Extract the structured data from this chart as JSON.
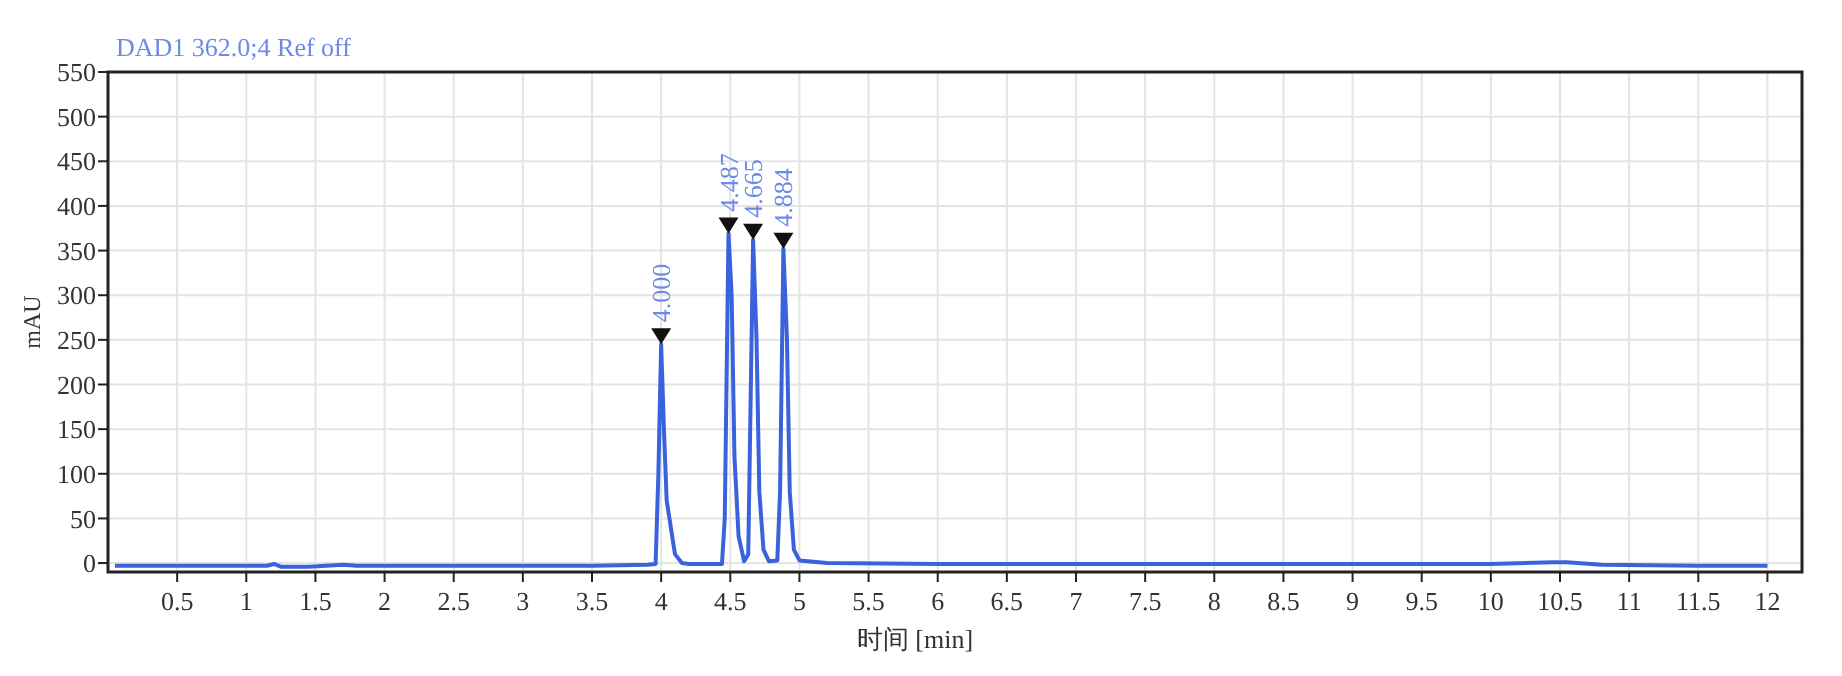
{
  "chart_data": {
    "type": "line",
    "title": "DAD1 362.0;4 Ref off",
    "xlabel": "时间 [min]",
    "ylabel": "mAU",
    "xlim": [
      0,
      12.25
    ],
    "ylim": [
      -10,
      550
    ],
    "xticks": [
      0.5,
      1,
      1.5,
      2,
      2.5,
      3,
      3.5,
      4,
      4.5,
      5,
      5.5,
      6,
      6.5,
      7,
      7.5,
      8,
      8.5,
      9,
      9.5,
      10,
      10.5,
      11,
      11.5,
      12
    ],
    "yticks": [
      0,
      50,
      100,
      150,
      200,
      250,
      300,
      350,
      400,
      450,
      500,
      550
    ],
    "grid": true,
    "marker": "none",
    "line_style": "solid",
    "series": [
      {
        "color": "#3a62dc",
        "x": [
          0.05,
          1.15,
          1.2,
          1.25,
          1.45,
          1.7,
          1.8,
          3.5,
          3.9,
          3.96,
          3.98,
          4.0,
          4.02,
          4.04,
          4.07,
          4.1,
          4.15,
          4.2,
          4.44,
          4.46,
          4.487,
          4.51,
          4.53,
          4.56,
          4.6,
          4.63,
          4.665,
          4.69,
          4.71,
          4.74,
          4.78,
          4.84,
          4.86,
          4.884,
          4.91,
          4.93,
          4.96,
          5.0,
          5.2,
          6,
          10,
          10.45,
          10.55,
          10.8,
          11.5,
          12
        ],
        "values": [
          -3,
          -3,
          -1,
          -4,
          -4,
          -2,
          -3,
          -3,
          -2,
          -1,
          100,
          245,
          150,
          70,
          40,
          10,
          0,
          -1,
          -1,
          50,
          369,
          300,
          120,
          30,
          2,
          10,
          362,
          250,
          80,
          15,
          2,
          3,
          80,
          352,
          250,
          80,
          15,
          3,
          0,
          -1,
          -1,
          1,
          1,
          -2,
          -3,
          -3
        ]
      }
    ],
    "annotations": [
      {
        "text": "4.000",
        "x": 4.0,
        "y": 245
      },
      {
        "text": "4.487",
        "x": 4.487,
        "y": 369
      },
      {
        "text": "4.665",
        "x": 4.665,
        "y": 362
      },
      {
        "text": "4.884",
        "x": 4.884,
        "y": 352
      }
    ]
  }
}
